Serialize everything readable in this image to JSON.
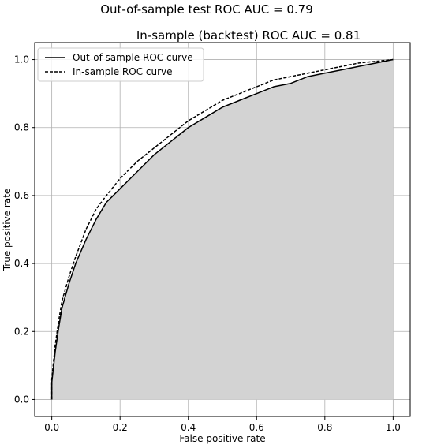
{
  "chart_data": {
    "type": "line",
    "title": "Out-of-sample test ROC AUC = 0.79",
    "subtitle": "In-sample (backtest) ROC AUC = 0.81",
    "xlabel": "False positive rate",
    "ylabel": "True positive rate",
    "xlim": [
      -0.05,
      1.05
    ],
    "ylim": [
      -0.05,
      1.05
    ],
    "xticks": [
      0.0,
      0.2,
      0.4,
      0.6,
      0.8,
      1.0
    ],
    "yticks": [
      0.0,
      0.2,
      0.4,
      0.6,
      0.8,
      1.0
    ],
    "xtick_labels": [
      "0.0",
      "0.2",
      "0.4",
      "0.6",
      "0.8",
      "1.0"
    ],
    "ytick_labels": [
      "0.0",
      "0.2",
      "0.4",
      "0.6",
      "0.8",
      "1.0"
    ],
    "grid": true,
    "legend_position": "top-left",
    "fill_under": "Out-of-sample ROC curve",
    "fill_color": "#d3d3d3",
    "series": [
      {
        "name": "Out-of-sample ROC curve",
        "style": "solid",
        "color": "#000000",
        "x": [
          0.0,
          0.0,
          0.01,
          0.02,
          0.03,
          0.05,
          0.07,
          0.1,
          0.13,
          0.16,
          0.2,
          0.25,
          0.3,
          0.35,
          0.4,
          0.45,
          0.5,
          0.55,
          0.6,
          0.65,
          0.7,
          0.75,
          0.8,
          0.85,
          0.9,
          0.95,
          1.0
        ],
        "y": [
          0.0,
          0.05,
          0.14,
          0.21,
          0.27,
          0.34,
          0.4,
          0.47,
          0.53,
          0.58,
          0.62,
          0.67,
          0.72,
          0.76,
          0.8,
          0.83,
          0.86,
          0.88,
          0.9,
          0.92,
          0.93,
          0.95,
          0.96,
          0.97,
          0.98,
          0.99,
          1.0
        ]
      },
      {
        "name": "In-sample ROC curve",
        "style": "dashed",
        "color": "#000000",
        "x": [
          0.0,
          0.0,
          0.01,
          0.02,
          0.03,
          0.05,
          0.07,
          0.1,
          0.13,
          0.16,
          0.2,
          0.25,
          0.3,
          0.35,
          0.4,
          0.45,
          0.5,
          0.55,
          0.6,
          0.65,
          0.7,
          0.75,
          0.8,
          0.85,
          0.9,
          0.95,
          1.0
        ],
        "y": [
          0.0,
          0.06,
          0.16,
          0.23,
          0.29,
          0.36,
          0.42,
          0.5,
          0.56,
          0.6,
          0.65,
          0.7,
          0.74,
          0.78,
          0.82,
          0.85,
          0.88,
          0.9,
          0.92,
          0.94,
          0.95,
          0.96,
          0.97,
          0.98,
          0.99,
          0.995,
          1.0
        ]
      }
    ]
  }
}
